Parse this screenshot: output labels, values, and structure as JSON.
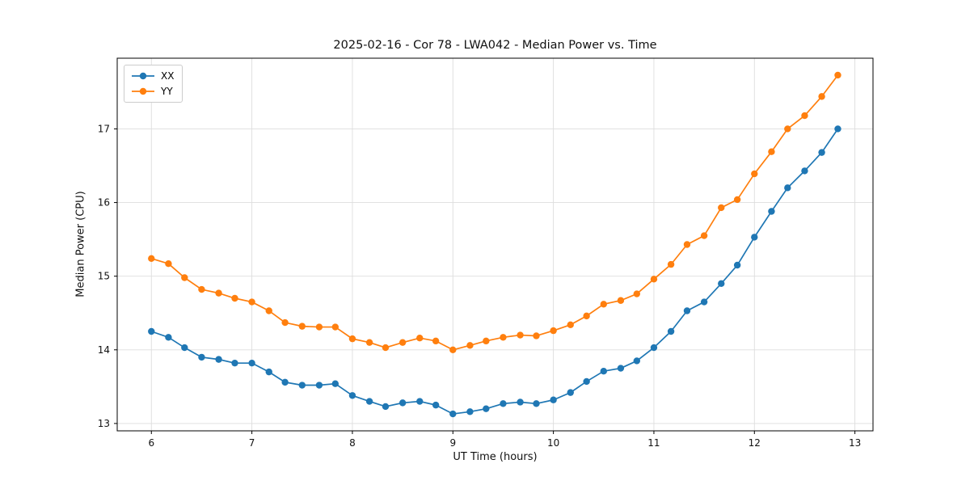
{
  "chart_data": {
    "type": "line",
    "title": "2025-02-16 - Cor 78 - LWA042 - Median Power vs. Time",
    "xlabel": "UT Time (hours)",
    "ylabel": "Median Power (CPU)",
    "xlim": [
      5.66,
      13.18
    ],
    "ylim": [
      12.9,
      17.96
    ],
    "xticks": [
      6,
      7,
      8,
      9,
      10,
      11,
      12,
      13
    ],
    "yticks": [
      13,
      14,
      15,
      16,
      17
    ],
    "grid": true,
    "legend_position": "upper left",
    "x": [
      6.0,
      6.17,
      6.33,
      6.5,
      6.67,
      6.83,
      7.0,
      7.17,
      7.33,
      7.5,
      7.67,
      7.83,
      8.0,
      8.17,
      8.33,
      8.5,
      8.67,
      8.83,
      9.0,
      9.17,
      9.33,
      9.5,
      9.67,
      9.83,
      10.0,
      10.17,
      10.33,
      10.5,
      10.67,
      10.83,
      11.0,
      11.17,
      11.33,
      11.5,
      11.67,
      11.83,
      12.0,
      12.17,
      12.33,
      12.5,
      12.67,
      12.83
    ],
    "series": [
      {
        "name": "XX",
        "color": "#1f77b4",
        "values": [
          14.25,
          14.17,
          14.03,
          13.9,
          13.87,
          13.82,
          13.82,
          13.7,
          13.56,
          13.52,
          13.52,
          13.54,
          13.38,
          13.3,
          13.23,
          13.28,
          13.3,
          13.25,
          13.13,
          13.16,
          13.2,
          13.27,
          13.29,
          13.27,
          13.32,
          13.42,
          13.57,
          13.71,
          13.75,
          13.85,
          14.03,
          14.25,
          14.53,
          14.65,
          14.9,
          15.15,
          15.53,
          15.88,
          16.2,
          16.43,
          16.68,
          17.0
        ]
      },
      {
        "name": "YY",
        "color": "#ff7f0e",
        "values": [
          15.24,
          15.17,
          14.98,
          14.82,
          14.77,
          14.7,
          14.65,
          14.53,
          14.37,
          14.32,
          14.31,
          14.31,
          14.15,
          14.1,
          14.03,
          14.1,
          14.16,
          14.12,
          14.0,
          14.06,
          14.12,
          14.17,
          14.2,
          14.19,
          14.26,
          14.34,
          14.46,
          14.62,
          14.67,
          14.76,
          14.96,
          15.16,
          15.43,
          15.55,
          15.93,
          16.04,
          16.39,
          16.69,
          17.0,
          17.18,
          17.44,
          17.73
        ]
      }
    ],
    "style": {
      "grid_color": "#dddddd",
      "frame_color": "#000000",
      "marker_radius": 4.2,
      "line_width": 1.7
    }
  }
}
